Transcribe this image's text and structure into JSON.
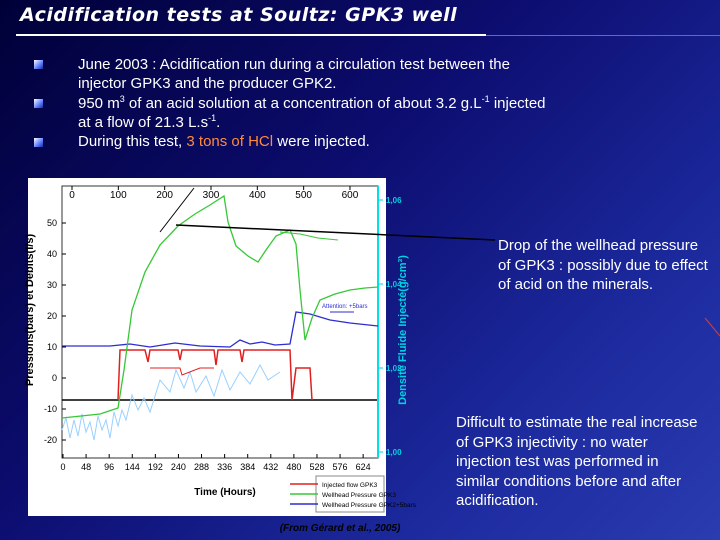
{
  "title": "Acidification tests at Soultz: GPK3 well",
  "bullets": [
    {
      "lines": [
        [
          "June 2003",
          " : Acidification run during a circulation test between the"
        ],
        [
          "injector GPK3 and the producer GPK2."
        ]
      ]
    },
    {
      "lines": [
        [
          "950 m",
          "3",
          " of an acid solution at a concentration of about 3.2 g.L",
          "-1",
          " injected"
        ],
        [
          "at a flow of 21.3 L.s",
          "-1",
          "."
        ]
      ]
    },
    {
      "lines": [
        [
          "During this test, ",
          "3 tons of HCl",
          " were injected."
        ]
      ]
    }
  ],
  "figure": {
    "y_label": "Pressions(bars) et Débits(l/s)",
    "y2_label": "Densité Fluide Injecté(g/cm³)",
    "x_label": "Time (Hours)",
    "annotation": "Attention: +5bars",
    "y_ticks": [
      50,
      40,
      30,
      20,
      10,
      0,
      -10,
      -20
    ],
    "top_x_ticks": [
      0,
      100,
      200,
      300,
      400,
      500,
      600
    ],
    "bottom_x_ticks": [
      0,
      48,
      96,
      144,
      192,
      240,
      288,
      336,
      384,
      432,
      480,
      528,
      576,
      624
    ],
    "right_ticks": [
      {
        "value": 1.06,
        "label": "1,06"
      },
      {
        "value": 1.04,
        "label": "1,04"
      },
      {
        "value": 1.02,
        "label": "1,02"
      },
      {
        "value": 1.0,
        "label": "1,00"
      }
    ],
    "legend": [
      {
        "name": "Injected flow GPK3",
        "color": "#e02020"
      },
      {
        "name": "Wellhead Pressure GPK3",
        "color": "#36c836"
      },
      {
        "name": "Wellhead Pressure GPK2+5bars",
        "color": "#2d2dd0"
      }
    ]
  },
  "callouts": [
    "Drop of the wellhead pressure of GPK3 : possibly due to effect of acid on the minerals.",
    "Difficult to estimate the real increase of GPK3 injectivity : no water injection test was performed in similar conditions before and after acidification."
  ],
  "caption": "(From Gérard et al., 2005)"
}
